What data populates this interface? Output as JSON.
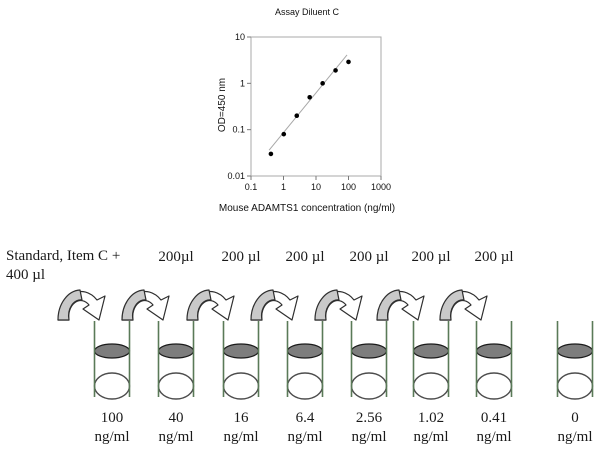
{
  "chart_data": {
    "type": "scatter",
    "title": "Assay Diluent C",
    "xlabel": "Mouse ADAMTS1 concentration (ng/ml)",
    "ylabel": "OD=450 nm",
    "xscale": "log",
    "yscale": "log",
    "xlim": [
      0.1,
      1000
    ],
    "ylim": [
      0.01,
      10
    ],
    "x_tick_labels": [
      "0.1",
      "1",
      "10",
      "100",
      "1000"
    ],
    "y_tick_labels": [
      "0.01",
      "0.1",
      "1",
      "10"
    ],
    "grid": false,
    "legend": false,
    "series": [
      {
        "name": "standard-curve-points",
        "x": [
          0.41,
          1.02,
          2.56,
          6.4,
          16,
          40,
          100
        ],
        "y": [
          0.03,
          0.08,
          0.2,
          0.5,
          1.0,
          1.9,
          2.9
        ]
      }
    ],
    "trend_line": {
      "x": [
        0.36,
        90
      ],
      "y": [
        0.036,
        4.1
      ]
    },
    "marker_color": "#000000",
    "trend_color": "#a8a8a8",
    "frame_color": "#a8a8a8"
  },
  "dilution": {
    "source_line1": "Standard, Item C +",
    "source_line2": "400 µl",
    "transfer_volumes": [
      "200µl",
      "200 µl",
      "200 µl",
      "200 µl",
      "200 µl",
      "200 µl"
    ],
    "tubes": [
      {
        "concentration": "100",
        "unit": "ng/ml"
      },
      {
        "concentration": "40",
        "unit": "ng/ml"
      },
      {
        "concentration": "16",
        "unit": "ng/ml"
      },
      {
        "concentration": "6.4",
        "unit": "ng/ml"
      },
      {
        "concentration": "2.56",
        "unit": "ng/ml"
      },
      {
        "concentration": "1.02",
        "unit": "ng/ml"
      },
      {
        "concentration": "0.41",
        "unit": "ng/ml"
      },
      {
        "concentration": "0",
        "unit": "ng/ml"
      }
    ],
    "colors": {
      "tube_wall": "#5a7a58",
      "liquid_fill": "#7d7d7d",
      "liquid_stroke": "#1a1a1a",
      "tube_bottom_stroke": "#4d4d4d",
      "arrow_fill": "#c9c9c9",
      "arrow_stroke": "#2f2f2f"
    }
  }
}
